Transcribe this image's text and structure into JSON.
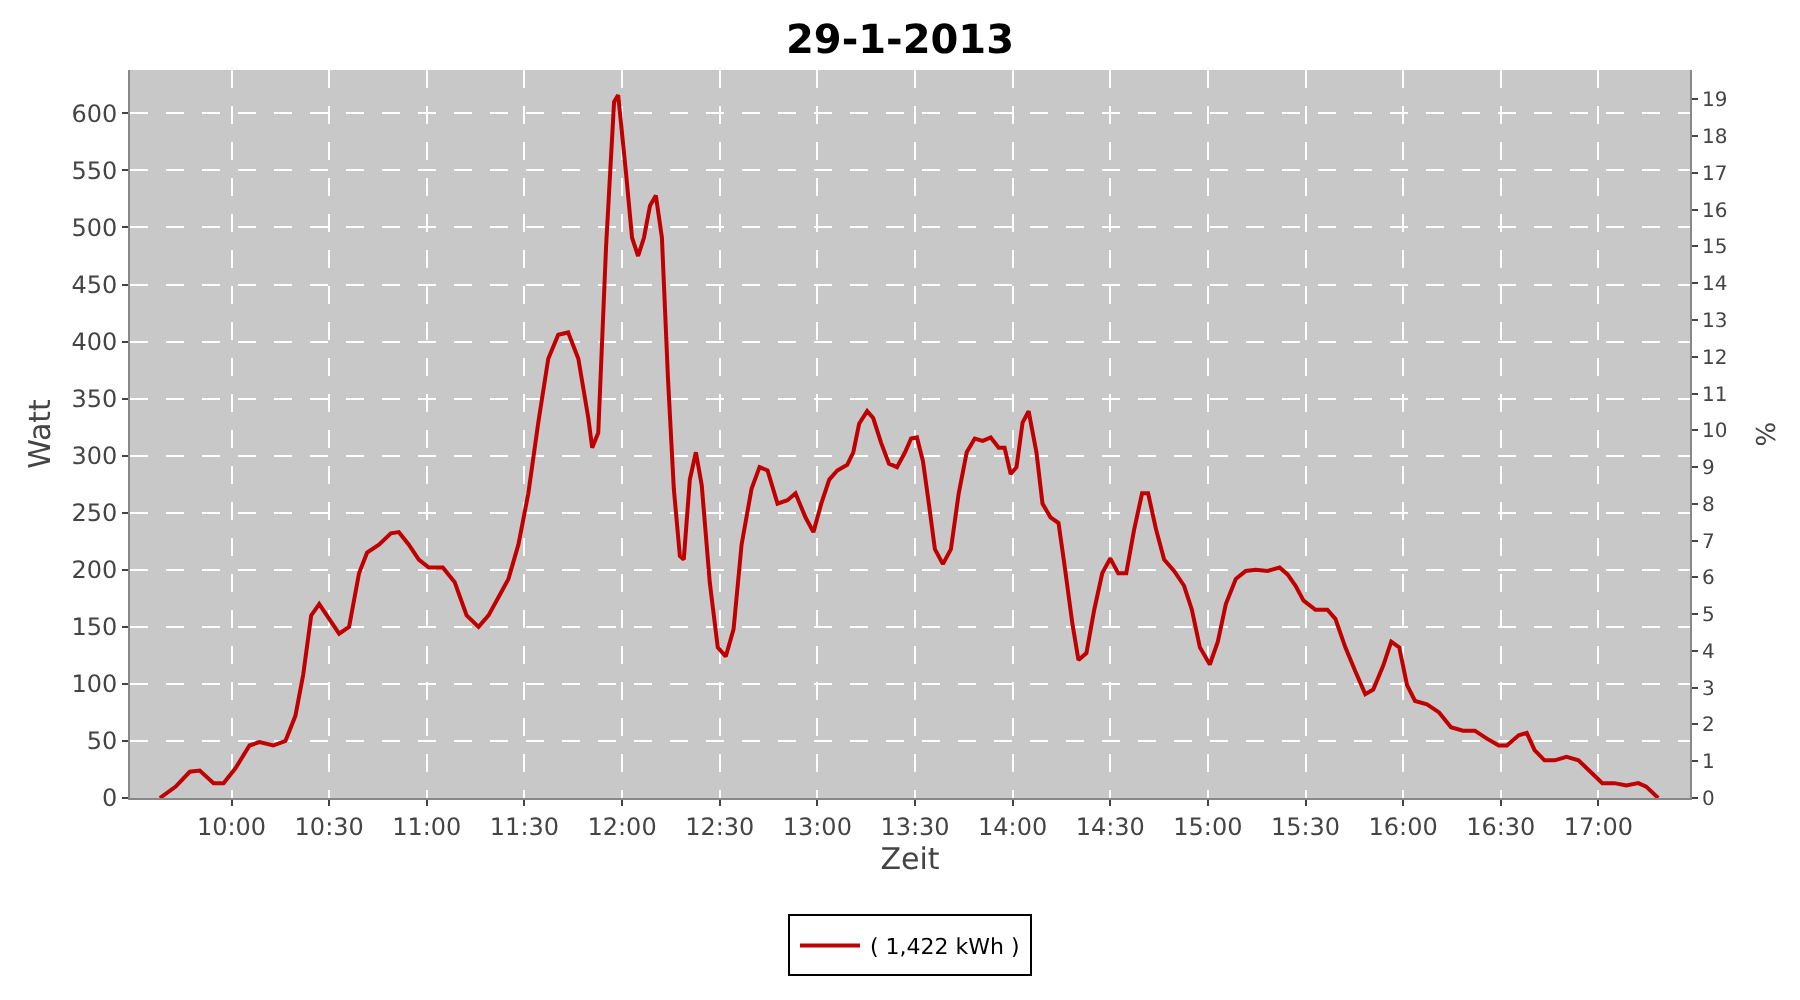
{
  "chart_data": {
    "type": "line",
    "title": "29-1-2013",
    "xlabel": "Zeit",
    "ylabel": "Watt",
    "y2label": "%",
    "x": [
      9.633,
      9.714,
      9.786,
      9.837,
      9.908,
      9.959,
      10.02,
      10.092,
      10.143,
      10.214,
      10.276,
      10.327,
      10.367,
      10.408,
      10.449,
      10.5,
      10.551,
      10.602,
      10.653,
      10.694,
      10.755,
      10.816,
      10.857,
      10.908,
      10.959,
      11.01,
      11.082,
      11.143,
      11.204,
      11.265,
      11.316,
      11.367,
      11.418,
      11.469,
      11.52,
      11.571,
      11.622,
      11.673,
      11.724,
      11.776,
      11.827,
      11.847,
      11.878,
      11.918,
      11.959,
      11.98,
      12.02,
      12.051,
      12.082,
      12.112,
      12.143,
      12.173,
      12.204,
      12.235,
      12.265,
      12.296,
      12.316,
      12.347,
      12.378,
      12.408,
      12.449,
      12.49,
      12.531,
      12.571,
      12.612,
      12.663,
      12.704,
      12.745,
      12.796,
      12.847,
      12.888,
      12.939,
      12.98,
      13.02,
      13.061,
      13.102,
      13.153,
      13.184,
      13.214,
      13.255,
      13.286,
      13.327,
      13.367,
      13.408,
      13.449,
      13.48,
      13.51,
      13.541,
      13.571,
      13.602,
      13.643,
      13.684,
      13.724,
      13.765,
      13.806,
      13.847,
      13.888,
      13.929,
      13.959,
      13.99,
      14.02,
      14.051,
      14.082,
      14.122,
      14.153,
      14.194,
      14.235,
      14.265,
      14.306,
      14.337,
      14.378,
      14.418,
      14.459,
      14.5,
      14.541,
      14.582,
      14.622,
      14.663,
      14.694,
      14.735,
      14.776,
      14.827,
      14.878,
      14.918,
      14.959,
      15.01,
      15.051,
      15.092,
      15.143,
      15.194,
      15.245,
      15.306,
      15.367,
      15.408,
      15.449,
      15.49,
      15.551,
      15.612,
      15.653,
      15.704,
      15.755,
      15.806,
      15.847,
      15.898,
      15.939,
      15.98,
      16.02,
      16.061,
      16.122,
      16.184,
      16.245,
      16.306,
      16.367,
      16.429,
      16.49,
      16.531,
      16.592,
      16.633,
      16.673,
      16.724,
      16.776,
      16.837,
      16.898,
      16.959,
      17.02,
      17.082,
      17.143,
      17.204,
      17.245,
      17.306
    ],
    "series": [
      {
        "name": "( 1,422 kWh )",
        "color": "#c00000",
        "values": [
          0,
          10,
          23,
          24,
          13,
          13,
          26,
          46,
          49,
          46,
          50,
          72,
          108,
          160,
          170,
          157,
          144,
          150,
          197,
          215,
          222,
          232,
          233,
          222,
          209,
          202,
          202,
          189,
          160,
          150,
          160,
          176,
          192,
          222,
          267,
          329,
          385,
          406,
          408,
          385,
          333,
          307,
          320,
          483,
          610,
          616,
          548,
          491,
          475,
          491,
          519,
          528,
          491,
          368,
          271,
          212,
          209,
          279,
          303,
          274,
          189,
          132,
          124,
          148,
          222,
          271,
          290,
          287,
          258,
          261,
          267,
          246,
          233,
          258,
          279,
          287,
          292,
          303,
          328,
          339,
          333,
          311,
          293,
          290,
          303,
          315,
          316,
          295,
          258,
          218,
          205,
          218,
          267,
          303,
          315,
          313,
          316,
          307,
          307,
          284,
          290,
          329,
          339,
          303,
          258,
          246,
          241,
          205,
          153,
          121,
          127,
          165,
          197,
          210,
          197,
          197,
          235,
          267,
          267,
          235,
          209,
          199,
          186,
          165,
          132,
          117,
          137,
          170,
          192,
          199,
          200,
          199,
          202,
          196,
          186,
          173,
          165,
          165,
          157,
          132,
          111,
          91,
          95,
          116,
          137,
          132,
          99,
          85,
          82,
          75,
          62,
          59,
          59,
          52,
          46,
          46,
          55,
          57,
          42,
          33,
          33,
          36,
          33,
          23,
          13,
          13,
          11,
          13,
          10,
          0
        ]
      }
    ],
    "xlim": [
      9.48,
      17.469
    ],
    "ylim": [
      0,
      638
    ],
    "y2lim": [
      0,
      19.8
    ],
    "xticks": [
      {
        "value": 10,
        "label": "10:00"
      },
      {
        "value": 10.5,
        "label": "10:30"
      },
      {
        "value": 11,
        "label": "11:00"
      },
      {
        "value": 11.5,
        "label": "11:30"
      },
      {
        "value": 12,
        "label": "12:00"
      },
      {
        "value": 12.5,
        "label": "12:30"
      },
      {
        "value": 13,
        "label": "13:00"
      },
      {
        "value": 13.5,
        "label": "13:30"
      },
      {
        "value": 14,
        "label": "14:00"
      },
      {
        "value": 14.5,
        "label": "14:30"
      },
      {
        "value": 15,
        "label": "15:00"
      },
      {
        "value": 15.5,
        "label": "15:30"
      },
      {
        "value": 16,
        "label": "16:00"
      },
      {
        "value": 16.5,
        "label": "16:30"
      },
      {
        "value": 17,
        "label": "17:00"
      }
    ],
    "yticks": [
      0,
      50,
      100,
      150,
      200,
      250,
      300,
      350,
      400,
      450,
      500,
      550,
      600
    ],
    "y2ticks": [
      0,
      1,
      2,
      3,
      4,
      5,
      6,
      7,
      8,
      9,
      10,
      11,
      12,
      13,
      14,
      15,
      16,
      17,
      18,
      19
    ],
    "grid": true,
    "legend": "bottom",
    "marker": "none",
    "line_style": "solid"
  }
}
